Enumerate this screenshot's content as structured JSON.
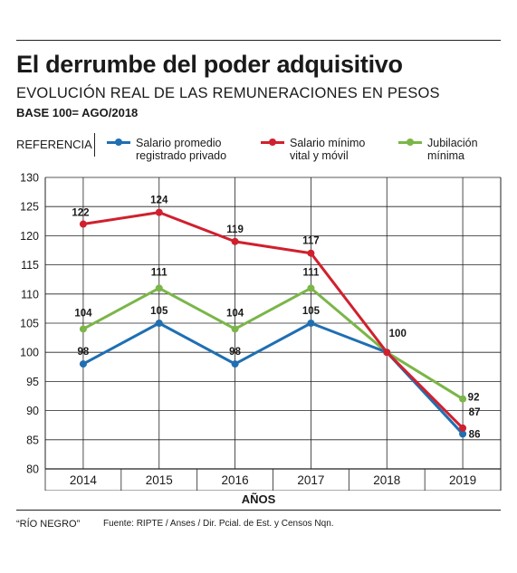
{
  "header": {
    "title": "El derrumbe del poder adquisitivo",
    "subtitle": "EVOLUCIÓN REAL DE LAS REMUNERACIONES EN PESOS",
    "base": "BASE 100= AGO/2018"
  },
  "legend": {
    "label": "REFERENCIA",
    "items": [
      {
        "text": "Salario promedio\nregistrado privado",
        "color": "#1f6fb2"
      },
      {
        "text": "Salario mínimo\nvital y móvil",
        "color": "#d0202e"
      },
      {
        "text": "Jubilación\nmínima",
        "color": "#7ab648"
      }
    ]
  },
  "footer": {
    "source_brand": "“RÍO NEGRO”",
    "source": "Fuente: RIPTE / Anses / Dir. Pcial. de Est. y Censos Nqn."
  },
  "chart_data": {
    "type": "line",
    "categories": [
      "2014",
      "2015",
      "2016",
      "2017",
      "2018",
      "2019"
    ],
    "xlabel": "AÑOS",
    "ylim": [
      80,
      130
    ],
    "yticks": [
      80,
      85,
      90,
      95,
      100,
      105,
      110,
      115,
      120,
      125,
      130
    ],
    "grid": true,
    "series": [
      {
        "name": "Salario promedio registrado privado",
        "color": "#1f6fb2",
        "values": [
          98,
          105,
          98,
          105,
          100,
          86
        ],
        "labels": [
          "98",
          "105",
          "98",
          "105",
          "",
          "86"
        ]
      },
      {
        "name": "Salario mínimo vital y móvil",
        "color": "#d0202e",
        "values": [
          122,
          124,
          119,
          117,
          100,
          87
        ],
        "labels": [
          "122",
          "124",
          "119",
          "117",
          "",
          "87"
        ]
      },
      {
        "name": "Jubilación mínima",
        "color": "#7ab648",
        "values": [
          104,
          111,
          104,
          111,
          100,
          92
        ],
        "labels": [
          "104",
          "111",
          "104",
          "111",
          "100",
          "92"
        ]
      }
    ]
  }
}
